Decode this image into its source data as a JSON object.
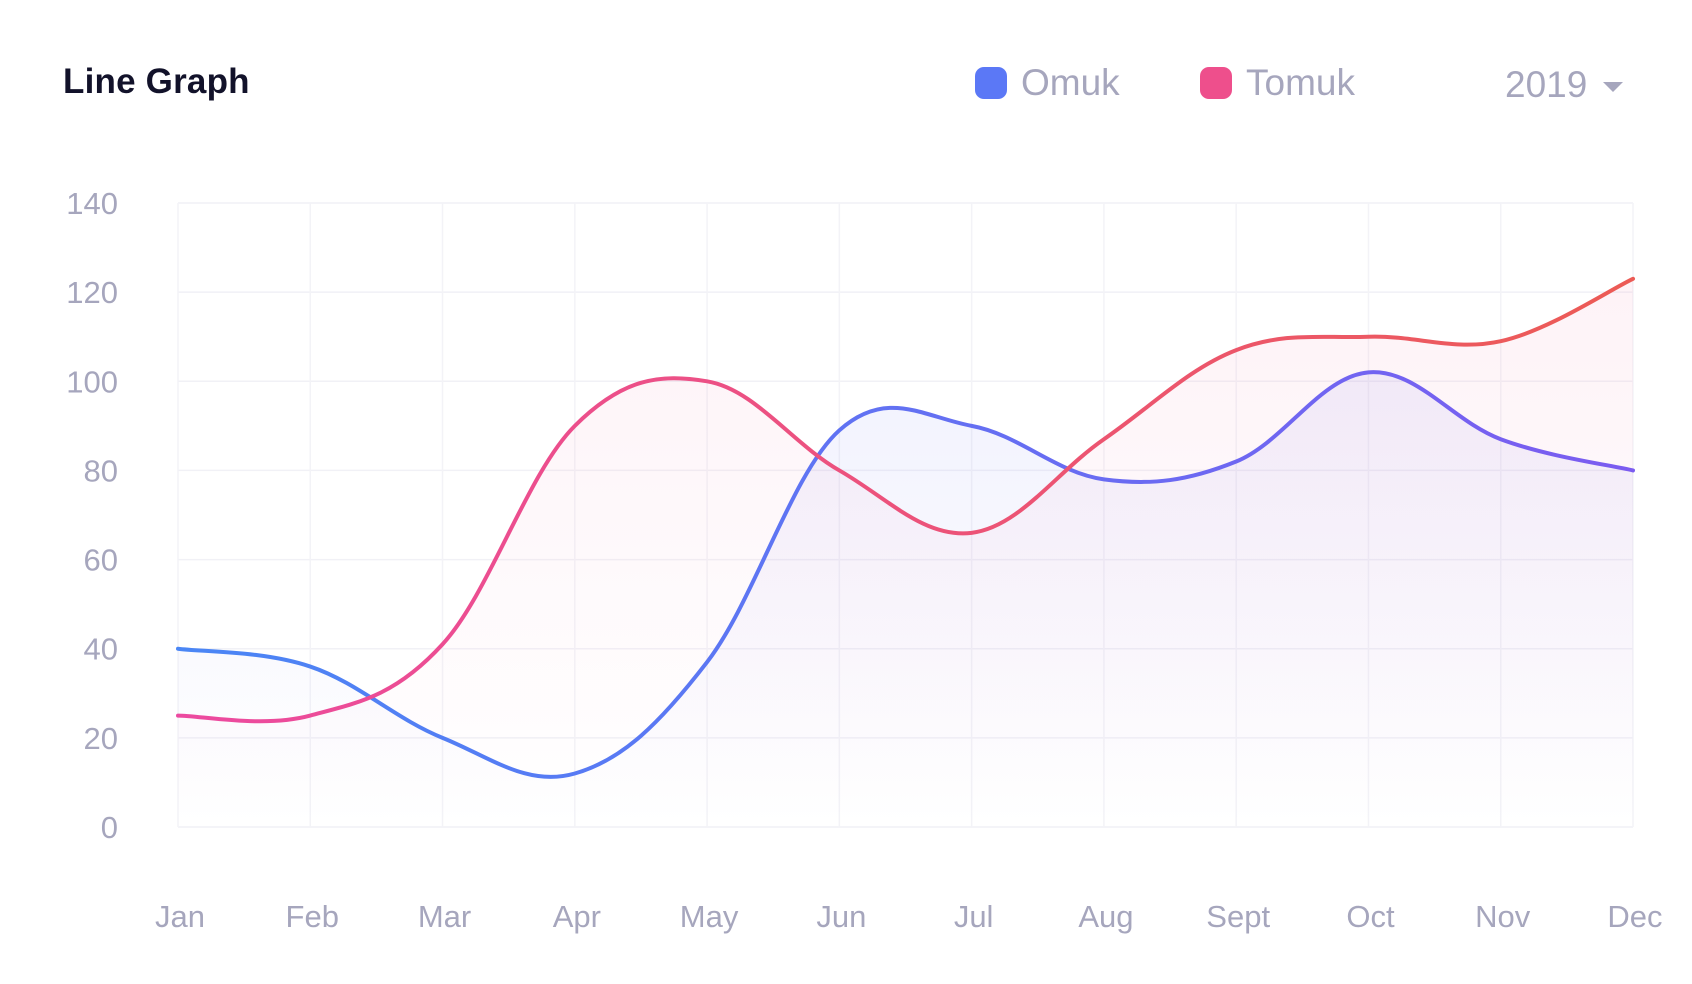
{
  "header": {
    "title": "Line Graph",
    "year": "2019"
  },
  "legend": [
    {
      "label": "Omuk",
      "color": "#5b78f6"
    },
    {
      "label": "Tomuk",
      "color": "#ee4f8c"
    }
  ],
  "chart_data": {
    "type": "line",
    "title": "Line Graph",
    "xlabel": "",
    "ylabel": "",
    "categories": [
      "Jan",
      "Feb",
      "Mar",
      "Apr",
      "May",
      "Jun",
      "Jul",
      "Aug",
      "Sept",
      "Oct",
      "Nov",
      "Dec"
    ],
    "ylim": [
      0,
      140
    ],
    "yticks": [
      0,
      20,
      40,
      60,
      80,
      100,
      120,
      140
    ],
    "grid": true,
    "legend_position": "top-right",
    "series": [
      {
        "name": "Omuk",
        "values": [
          40,
          36,
          20,
          12,
          37,
          89,
          90,
          78,
          82,
          102,
          87,
          80
        ],
        "color_start": "#4a86f5",
        "color_end": "#7b5cf0"
      },
      {
        "name": "Tomuk",
        "values": [
          25,
          25,
          41,
          90,
          100,
          80,
          66,
          87,
          107,
          110,
          109,
          123
        ],
        "color_start": "#ec4aa0",
        "color_end": "#ec5b55"
      }
    ]
  }
}
